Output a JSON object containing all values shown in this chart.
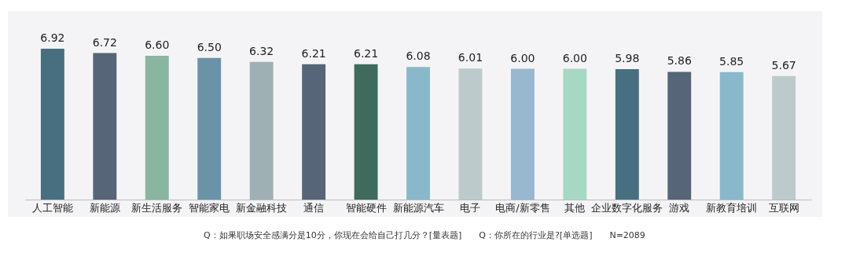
{
  "chart_data": {
    "type": "bar",
    "categories": [
      "人工智能",
      "新能源",
      "新生活服务",
      "智能家电",
      "新金融科技",
      "通信",
      "智能硬件",
      "新能源汽车",
      "电子",
      "电商/新零售",
      "其他",
      "企业数字化服务",
      "游戏",
      "新教育培训",
      "互联网"
    ],
    "values": [
      6.92,
      6.72,
      6.6,
      6.5,
      6.32,
      6.21,
      6.21,
      6.08,
      6.01,
      6.0,
      6.0,
      5.98,
      5.86,
      5.85,
      5.67
    ],
    "value_labels": [
      "6.92",
      "6.72",
      "6.60",
      "6.50",
      "6.32",
      "6.21",
      "6.21",
      "6.08",
      "6.01",
      "6.00",
      "6.00",
      "5.98",
      "5.86",
      "5.85",
      "5.67"
    ],
    "colors": [
      "#476f80",
      "#566577",
      "#8ab5a0",
      "#6a93a8",
      "#9fb0b5",
      "#566577",
      "#3f6b5c",
      "#8ab8cb",
      "#bccacb",
      "#97b8ce",
      "#a6d9c4",
      "#476f80",
      "#566577",
      "#8ab8cb",
      "#bccacb"
    ],
    "tick_labels": "x",
    "annotations": [
      "Q：如果职场安全感满分是10分，你现在会给自己打几分？[量表题]　　Q：你所在的行业是?[单选题]　　N=2089"
    ]
  }
}
